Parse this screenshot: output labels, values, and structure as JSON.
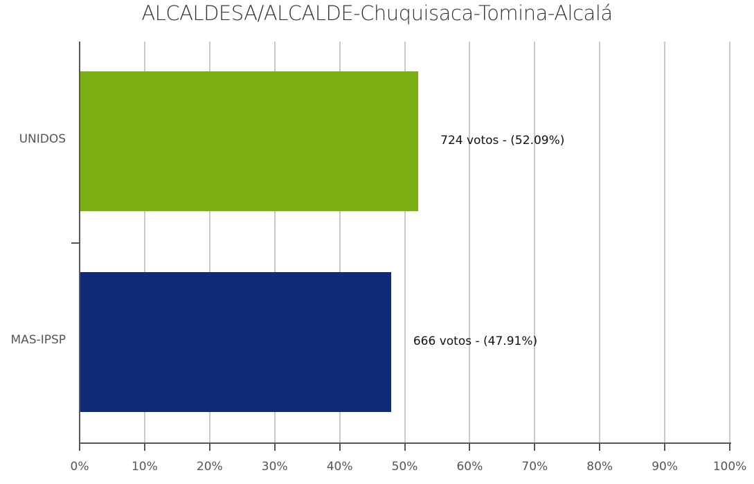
{
  "chart_data": {
    "type": "bar",
    "orientation": "horizontal",
    "title": "ALCALDESA/ALCALDE-Chuquisaca-Tomina-Alcalá",
    "xlabel": "",
    "ylabel": "",
    "xlim": [
      0,
      100
    ],
    "grid": true,
    "legend": "none",
    "categories": [
      "UNIDOS",
      "MAS-IPSP"
    ],
    "values": [
      52.09,
      47.91
    ],
    "votes": [
      724,
      666
    ],
    "colors": [
      "#7caf14",
      "#0f2b77"
    ],
    "data_labels": [
      "724 votos - (52.09%)",
      "666 votos - (47.91%)"
    ],
    "x_ticks": [
      "0%",
      "10%",
      "20%",
      "30%",
      "40%",
      "50%",
      "60%",
      "70%",
      "80%",
      "90%",
      "100%"
    ]
  },
  "title": "ALCALDESA/ALCALDE-Chuquisaca-Tomina-Alcalá"
}
